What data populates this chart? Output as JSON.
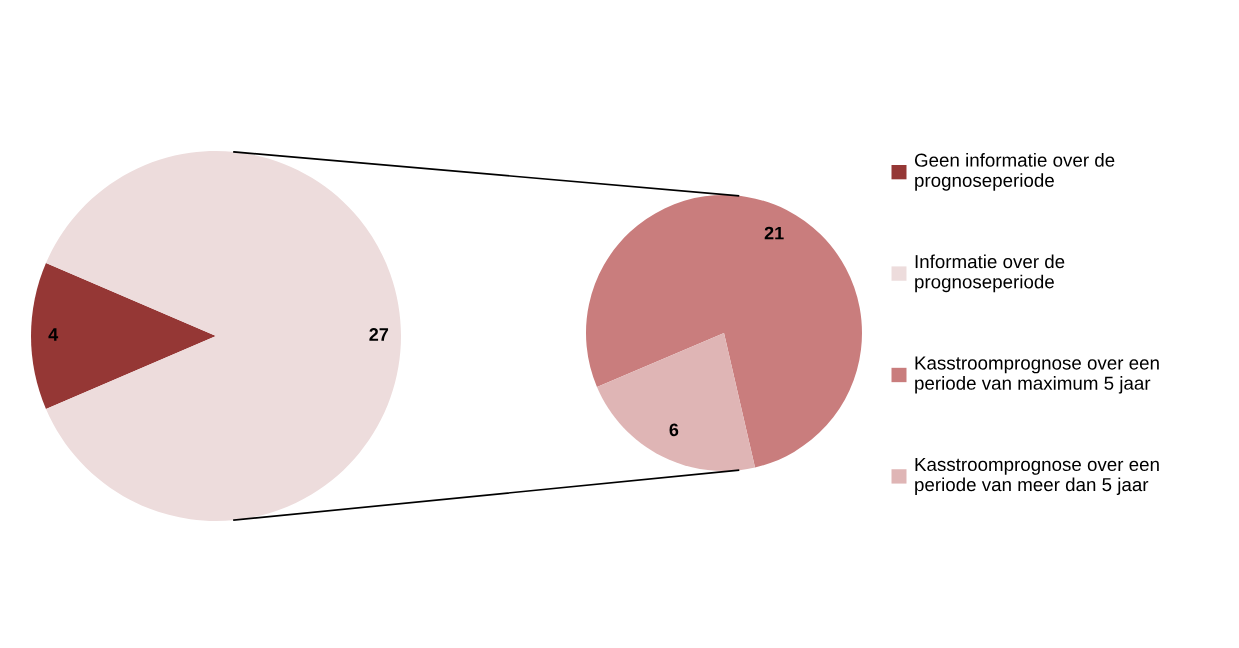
{
  "chart_data": [
    {
      "type": "pie",
      "categories": [
        "Geen informatie over de prognoseperiode",
        "Informatie over de prognoseperiode"
      ],
      "values": [
        4,
        27
      ],
      "colors": [
        "#953735",
        "#eddcdc"
      ],
      "data_labels": true,
      "legend": "right"
    },
    {
      "type": "pie",
      "categories": [
        "Kasstroomprognose over een periode van maximum 5 jaar",
        "Kasstroomprognose over een periode van meer dan 5 jaar"
      ],
      "values": [
        21,
        6
      ],
      "colors": [
        "#c97d7d",
        "#dfb5b5"
      ],
      "data_labels": true,
      "legend": "right"
    }
  ]
}
